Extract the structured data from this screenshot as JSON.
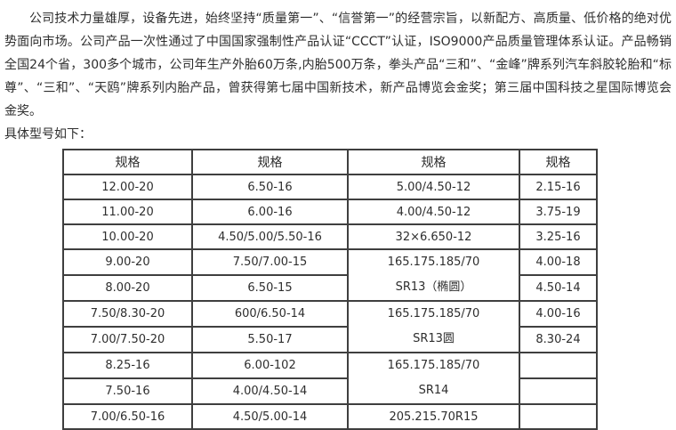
{
  "intro": {
    "paragraph": "公司技术力量雄厚，设备先进，始终坚持“质量第一”、“信誉第一”的经营宗旨，以新配方、高质量、低价格的绝对优势面向市场。公司产品一次性通过了中国国家强制性产品认证“CCCT”认证，ISO9000产品质量管理体系认证。产品畅销全国24个省，300多个城市，公司年生产外胎60万条,内胎500万条，拳头产品“三和”、“金峰”牌系列汽车斜胶轮胎和“标尊”、“三和”、“天鸥”牌系列内胎产品，曾获得第七届中国新技术，新产品博览会金奖；第三届中国科技之星国际博览会金奖。",
    "models_heading": "具体型号如下："
  },
  "spec_table": {
    "headers": [
      "规格",
      "规格",
      "规格",
      "规格"
    ],
    "rows": [
      {
        "cells": [
          {
            "text": "12.00-20"
          },
          {
            "text": "6.50-16"
          },
          {
            "text": "5.00/4.50-12"
          },
          {
            "text": "2.15-16"
          }
        ]
      },
      {
        "cells": [
          {
            "text": "11.00-20"
          },
          {
            "text": "6.00-16"
          },
          {
            "text": "4.00/4.50-12"
          },
          {
            "text": "3.75-19"
          }
        ]
      },
      {
        "cells": [
          {
            "text": "10.00-20"
          },
          {
            "text": "4.50/5.00/5.50-16"
          },
          {
            "text": "32×6.650-12"
          },
          {
            "text": "3.25-16"
          }
        ]
      },
      {
        "cells": [
          {
            "text": "9.00-20"
          },
          {
            "text": "7.50/7.00-15"
          },
          {
            "lines": [
              "165.175.185/70",
              "SR13（椭圆）"
            ],
            "rowspan": 2
          },
          {
            "text": "4.00-18"
          }
        ]
      },
      {
        "cells": [
          {
            "text": "8.00-20"
          },
          {
            "text": "6.50-15"
          },
          {
            "text": "4.50-14"
          }
        ]
      },
      {
        "cells": [
          {
            "text": "7.50/8.30-20"
          },
          {
            "text": "600/6.50-14"
          },
          {
            "lines": [
              "165.175.185/70",
              "SR13圆"
            ],
            "rowspan": 2
          },
          {
            "text": "4.00-16"
          }
        ]
      },
      {
        "cells": [
          {
            "text": "7.00/7.50-20"
          },
          {
            "text": "5.50-17"
          },
          {
            "text": "8.30-24"
          }
        ]
      },
      {
        "cells": [
          {
            "text": "8.25-16"
          },
          {
            "text": "6.00-102"
          },
          {
            "lines": [
              "165.175.185/70",
              "SR14"
            ],
            "rowspan": 2
          },
          {
            "text": ""
          }
        ]
      },
      {
        "cells": [
          {
            "text": "7.50-16"
          },
          {
            "text": "4.00/4.50-14"
          },
          {
            "text": ""
          }
        ]
      },
      {
        "cells": [
          {
            "text": "7.00/6.50-16"
          },
          {
            "text": "4.50/5.00-14"
          },
          {
            "text": "205.215.70R15"
          },
          {
            "text": ""
          }
        ]
      }
    ]
  },
  "colors": {
    "text": "#2e2e2e",
    "table_border": "#3f3f3f",
    "background": "#ffffff"
  }
}
